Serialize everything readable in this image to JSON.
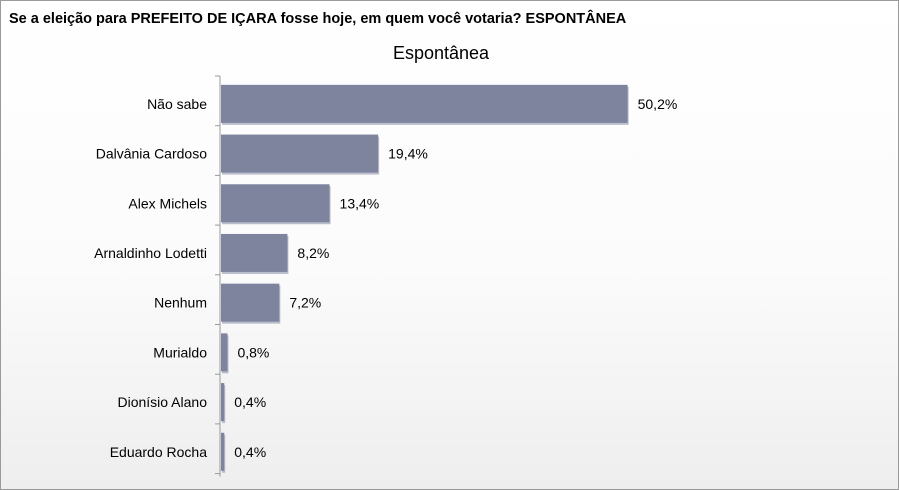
{
  "question": "Se a eleição para PREFEITO DE IÇARA fosse hoje, em quem você votaria? ESPONTÂNEA",
  "colors": {
    "bar": "#7e849e",
    "bar_shadow": "#b9bccb",
    "axis": "#9a9a9a"
  },
  "chart_data": {
    "type": "bar",
    "orientation": "horizontal",
    "title": "Espontânea",
    "xlabel": "",
    "ylabel": "",
    "xlim": [
      0,
      100
    ],
    "grid": false,
    "categories": [
      "Não sabe",
      "Dalvânia Cardoso",
      "Alex Michels",
      "Arnaldinho Lodetti",
      "Nenhum",
      "Murialdo",
      "Dionísio Alano",
      "Eduardo Rocha"
    ],
    "values": [
      50.2,
      19.4,
      13.4,
      8.2,
      7.2,
      0.8,
      0.4,
      0.4
    ],
    "value_labels": [
      "50,2%",
      "19,4%",
      "13,4%",
      "8,2%",
      "7,2%",
      "0,8%",
      "0,4%",
      "0,4%"
    ]
  }
}
